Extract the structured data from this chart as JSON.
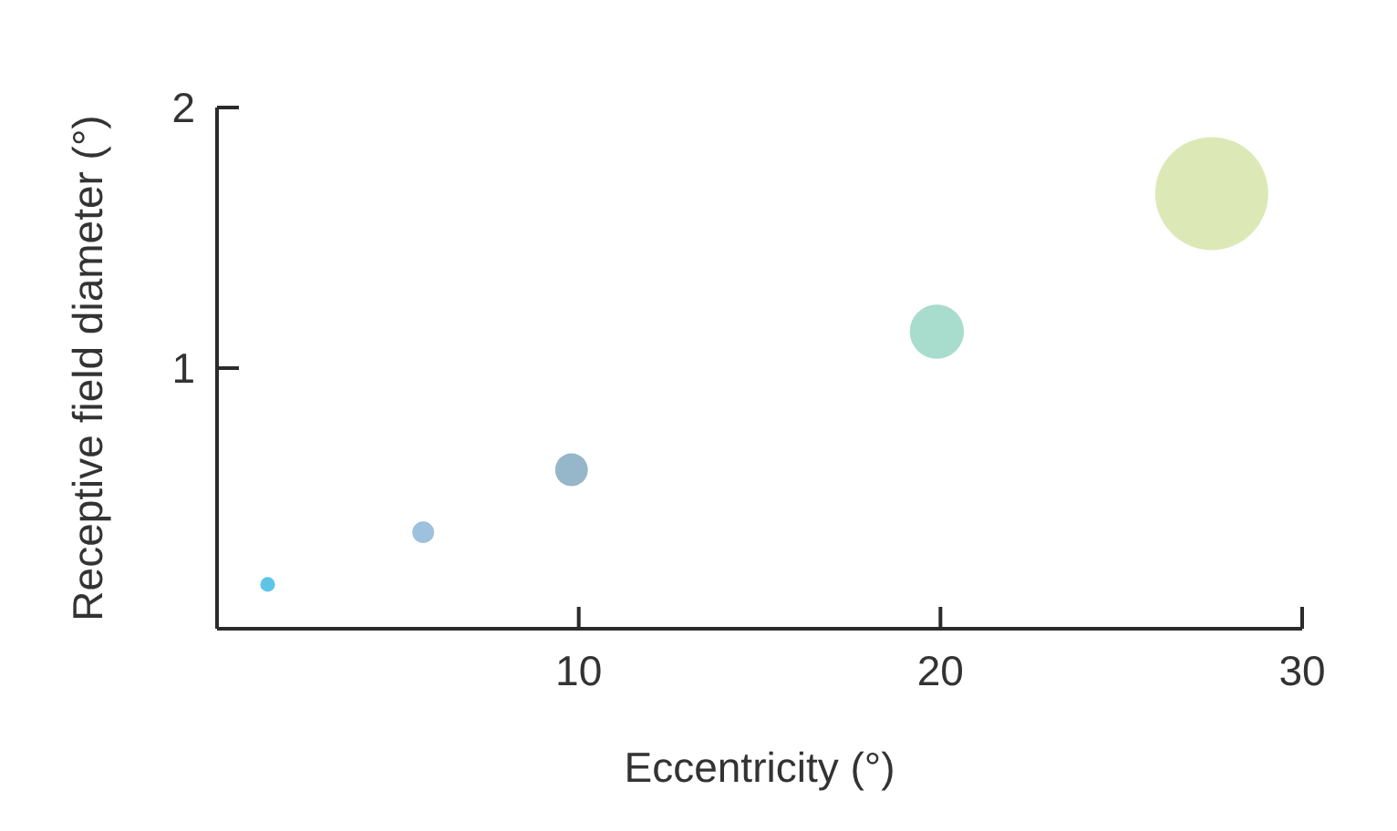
{
  "chart_data": {
    "type": "bubble",
    "xlabel": "Eccentricity (°)",
    "ylabel": "Receptive field diameter (°)",
    "x": [
      1.4,
      5.7,
      9.8,
      19.9,
      27.5
    ],
    "values": [
      0.17,
      0.37,
      0.61,
      1.14,
      1.67
    ],
    "sizes": [
      0.017,
      0.037,
      0.084,
      0.23,
      1
    ],
    "colors": [
      "#5ec5e8",
      "#9dc1de",
      "#96b6c9",
      "#a8dccd",
      "#dce9b7"
    ],
    "xlim": [
      0,
      30
    ],
    "xticks": [
      10,
      20,
      30
    ],
    "ylim": [
      0,
      2
    ],
    "yticks": [
      1,
      2
    ]
  }
}
